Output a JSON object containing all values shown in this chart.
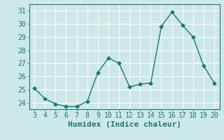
{
  "x": [
    3,
    4,
    5,
    6,
    7,
    8,
    9,
    10,
    11,
    12,
    13,
    14,
    15,
    16,
    17,
    18,
    19,
    20
  ],
  "y": [
    25.1,
    24.3,
    23.9,
    23.7,
    23.7,
    24.1,
    26.3,
    27.4,
    27.0,
    25.2,
    25.4,
    25.5,
    29.8,
    30.9,
    29.9,
    29.0,
    26.8,
    25.5
  ],
  "line_color": "#1a7a6e",
  "marker": "D",
  "marker_size": 2.5,
  "background_color": "#cde8e8",
  "grid_color": "#ffffff",
  "xlabel": "Humidex (Indice chaleur)",
  "ylim": [
    23.5,
    31.5
  ],
  "xlim": [
    2.5,
    20.5
  ],
  "yticks": [
    24,
    25,
    26,
    27,
    28,
    29,
    30,
    31
  ],
  "xticks": [
    3,
    4,
    5,
    6,
    7,
    8,
    9,
    10,
    11,
    12,
    13,
    14,
    15,
    16,
    17,
    18,
    19,
    20
  ],
  "tick_color": "#1a7a6e",
  "xlabel_fontsize": 8,
  "tick_fontsize": 7
}
